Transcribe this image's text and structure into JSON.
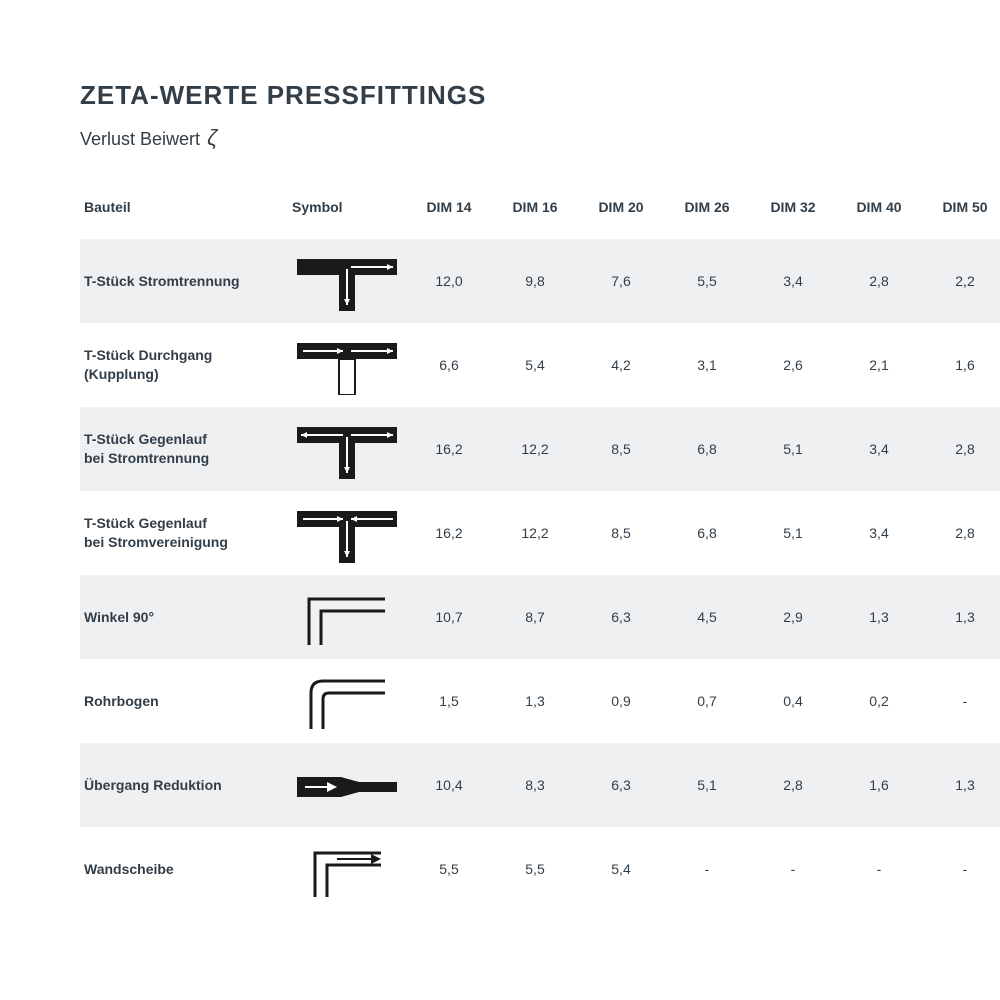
{
  "title": "ZETA-WERTE PRESSFITTINGS",
  "subtitle_prefix": "Verlust Beiwert",
  "subtitle_symbol": "ζ",
  "columns": {
    "bauteil": "Bauteil",
    "symbol": "Symbol",
    "dims": [
      "DIM 14",
      "DIM 16",
      "DIM 20",
      "DIM 26",
      "DIM 32",
      "DIM 40",
      "DIM 50"
    ]
  },
  "rows": [
    {
      "name_html": "T-Stück Stromtrennung",
      "symbol": "t-split",
      "vals": [
        "12,0",
        "9,8",
        "7,6",
        "5,5",
        "3,4",
        "2,8",
        "2,2"
      ]
    },
    {
      "name_html": "T-Stück Durchgang (Kupplung)",
      "symbol": "t-through",
      "vals": [
        "6,6",
        "5,4",
        "4,2",
        "3,1",
        "2,6",
        "2,1",
        "1,6"
      ]
    },
    {
      "name_html": "T-Stück Gegenlauf<br>bei Stromtrennung",
      "symbol": "t-counter-split",
      "vals": [
        "16,2",
        "12,2",
        "8,5",
        "6,8",
        "5,1",
        "3,4",
        "2,8"
      ]
    },
    {
      "name_html": "T-Stück Gegenlauf<br>bei Stromvereinigung",
      "symbol": "t-counter-merge",
      "vals": [
        "16,2",
        "12,2",
        "8,5",
        "6,8",
        "5,1",
        "3,4",
        "2,8"
      ]
    },
    {
      "name_html": "Winkel 90°",
      "symbol": "angle90",
      "vals": [
        "10,7",
        "8,7",
        "6,3",
        "4,5",
        "2,9",
        "1,3",
        "1,3"
      ]
    },
    {
      "name_html": "Rohrbogen",
      "symbol": "bend",
      "vals": [
        "1,5",
        "1,3",
        "0,9",
        "0,7",
        "0,4",
        "0,2",
        "-"
      ]
    },
    {
      "name_html": "Übergang Reduktion",
      "symbol": "reduction",
      "vals": [
        "10,4",
        "8,3",
        "6,3",
        "5,1",
        "2,8",
        "1,6",
        "1,3"
      ]
    },
    {
      "name_html": "Wandscheibe",
      "symbol": "wallplate",
      "vals": [
        "5,5",
        "5,5",
        "5,4",
        "-",
        "-",
        "-",
        "-"
      ]
    }
  ],
  "style": {
    "shade_bg": "#eef0f2",
    "text_color": "#323e48",
    "stroke": "#1a1a1a",
    "symbol_w": 100,
    "symbol_h": 60
  }
}
